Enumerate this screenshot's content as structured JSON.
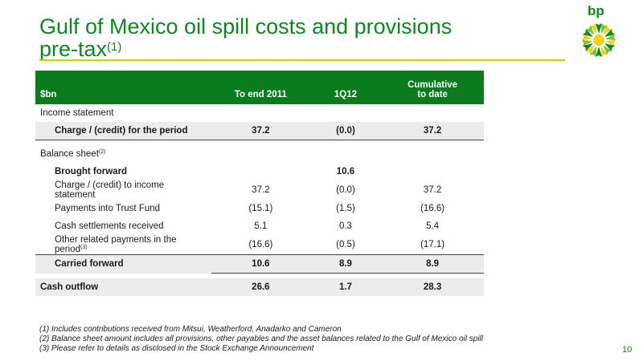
{
  "title": {
    "main": "Gulf of Mexico oil spill costs and provisions",
    "sub": "pre-tax",
    "sup": "(1)"
  },
  "logo": {
    "text": "bp",
    "icon": "bp-helios-icon",
    "colors": {
      "green": "#0a8a1e",
      "yellow": "#f7d117"
    }
  },
  "table": {
    "headers": [
      "$bn",
      "To end 2011",
      "1Q12",
      "Cumulative to date"
    ],
    "headers_lines": {
      "cum_line1": "Cumulative",
      "cum_line2": "to date"
    },
    "income_statement_label": "Income statement",
    "charge_row": {
      "label": "Charge / (credit) for the period",
      "values": [
        "37.2",
        "(0.0)",
        "37.2"
      ]
    },
    "balance_sheet_label": "Balance sheet",
    "balance_sheet_sup": "(2)",
    "brought_forward": {
      "label": "Brought forward",
      "values": [
        "",
        "10.6",
        ""
      ]
    },
    "rows": [
      {
        "label": "Charge / (credit) to income statement",
        "sup": "",
        "values": [
          "37.2",
          "(0.0)",
          "37.2"
        ]
      },
      {
        "label": "Payments into Trust Fund",
        "sup": "",
        "values": [
          "(15.1)",
          "(1.5)",
          "(16.6)"
        ]
      },
      {
        "label": "Cash settlements received",
        "sup": "",
        "values": [
          "5.1",
          "0.3",
          "5.4"
        ]
      },
      {
        "label": "Other related payments in the period",
        "sup": "(3)",
        "values": [
          "(16.6)",
          "(0.5)",
          "(17.1)"
        ]
      }
    ],
    "carried_forward": {
      "label": "Carried forward",
      "values": [
        "10.6",
        "8.9",
        "8.9"
      ]
    },
    "cash_outflow": {
      "label": "Cash outflow",
      "values": [
        "26.6",
        "1.7",
        "28.3"
      ]
    }
  },
  "notes": [
    "(1)  Includes contributions received from Mitsui, Weatherford, Anadarko and Cameron",
    "(2)  Balance sheet amount includes all provisions, other payables and the asset balances related to the Gulf of Mexico oil spill",
    "(3)  Please refer to details as disclosed in the Stock Exchange Announcement"
  ],
  "page_number": "10"
}
